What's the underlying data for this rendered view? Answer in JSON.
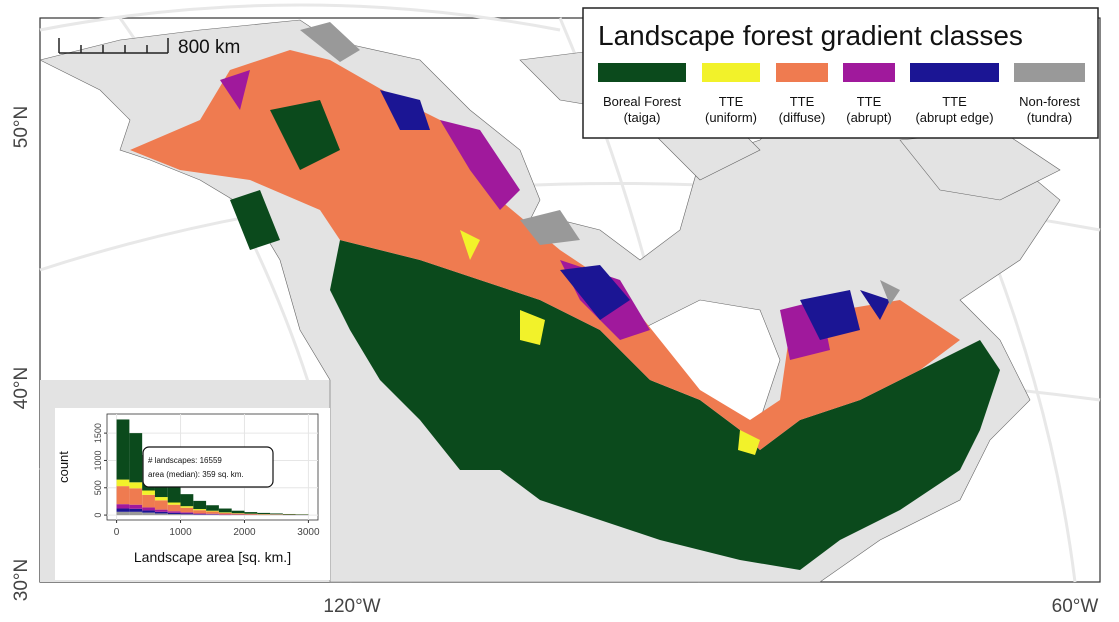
{
  "scale_bar": {
    "label": "800 km"
  },
  "latitude_labels": [
    "50°N",
    "40°N",
    "30°N"
  ],
  "longitude_labels": [
    "120°W",
    "60°W"
  ],
  "legend": {
    "title": "Landscape forest gradient classes",
    "items": [
      {
        "color": "#0b4a1c",
        "label": [
          "Boreal Forest",
          "(taiga)"
        ]
      },
      {
        "color": "#f2f22a",
        "label": [
          "TTE",
          "(uniform)"
        ]
      },
      {
        "color": "#ef7b50",
        "label": [
          "TTE",
          "(diffuse)"
        ]
      },
      {
        "color": "#a0199c",
        "label": [
          "TTE",
          "(abrupt)"
        ]
      },
      {
        "color": "#1b1594",
        "label": [
          "TTE",
          "(abrupt edge)"
        ]
      },
      {
        "color": "#999999",
        "label": [
          "Non-forest",
          "(tundra)"
        ]
      }
    ]
  },
  "chart_data": {
    "type": "histogram",
    "x_label": "Landscape area [sq. km.]",
    "y_label": "count",
    "annotation": [
      "# landscapes: 16559",
      "area (median): 359 sq. km."
    ],
    "bins": [
      0,
      200,
      400,
      600,
      800,
      1000,
      1200,
      1400,
      1600,
      1800,
      2000,
      2200,
      2400,
      2600,
      2800,
      3000
    ],
    "series": [
      {
        "color": "#999999",
        "values": [
          60,
          60,
          45,
          30,
          20,
          15,
          6,
          7,
          0,
          2,
          2,
          1,
          3,
          0,
          0
        ]
      },
      {
        "color": "#1b1594",
        "values": [
          60,
          55,
          40,
          30,
          22,
          15,
          10,
          7,
          5,
          3,
          2,
          2,
          1,
          1,
          1
        ]
      },
      {
        "color": "#a0199c",
        "values": [
          80,
          75,
          55,
          40,
          28,
          20,
          14,
          10,
          7,
          5,
          3,
          2,
          2,
          1,
          1
        ]
      },
      {
        "color": "#ef7b50",
        "values": [
          330,
          300,
          230,
          170,
          120,
          85,
          60,
          42,
          28,
          18,
          13,
          9,
          6,
          5,
          3
        ]
      },
      {
        "color": "#f2f22a",
        "values": [
          120,
          110,
          80,
          60,
          40,
          28,
          20,
          14,
          10,
          7,
          5,
          4,
          3,
          2,
          2
        ]
      },
      {
        "color": "#0b4a1c",
        "values": [
          1100,
          900,
          650,
          470,
          320,
          220,
          150,
          100,
          70,
          45,
          30,
          22,
          15,
          11,
          8
        ]
      }
    ],
    "xlim": [
      -150,
      3150
    ],
    "ylim": [
      -90,
      1850
    ],
    "xticks": [
      0,
      1000,
      2000,
      3000
    ],
    "yticks": [
      0,
      500,
      1000,
      1500
    ],
    "grid": true
  }
}
